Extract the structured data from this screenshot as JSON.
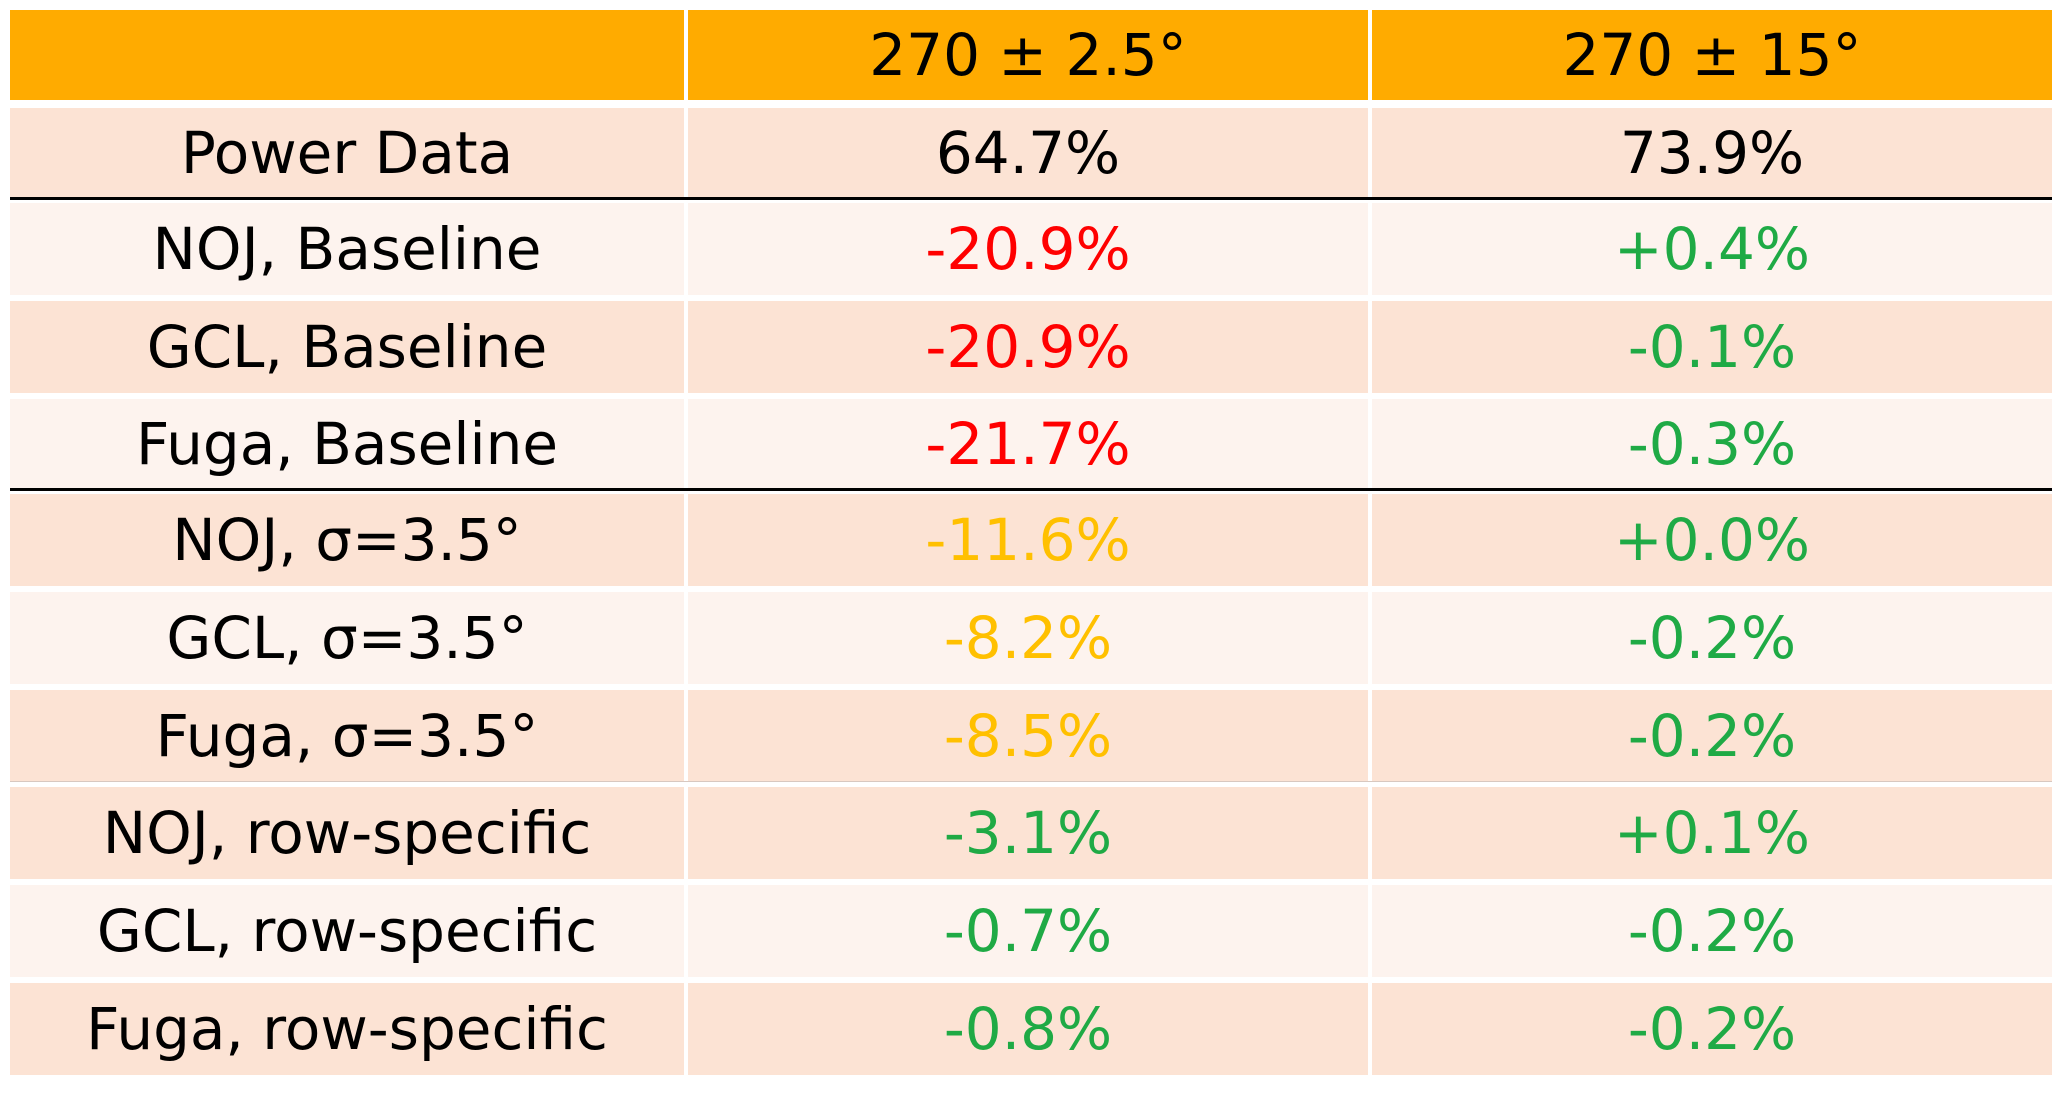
{
  "chart_data": {
    "type": "table",
    "columns": [
      "",
      "270 ± 2.5°",
      "270 ± 15°"
    ],
    "rows": [
      {
        "label": "Power Data",
        "values": [
          "64.7%",
          "73.9%"
        ],
        "colors": [
          "#000000",
          "#000000"
        ]
      },
      {
        "label": "NOJ, Baseline",
        "values": [
          "-20.9%",
          "+0.4%"
        ],
        "colors": [
          "#ff0000",
          "#1faa45"
        ]
      },
      {
        "label": "GCL, Baseline",
        "values": [
          "-20.9%",
          "-0.1%"
        ],
        "colors": [
          "#ff0000",
          "#1faa45"
        ]
      },
      {
        "label": "Fuga, Baseline",
        "values": [
          "-21.7%",
          "-0.3%"
        ],
        "colors": [
          "#ff0000",
          "#1faa45"
        ]
      },
      {
        "label": "NOJ, σ=3.5°",
        "values": [
          "-11.6%",
          "+0.0%"
        ],
        "colors": [
          "#ffc000",
          "#1faa45"
        ]
      },
      {
        "label": "GCL, σ=3.5°",
        "values": [
          "-8.2%",
          "-0.2%"
        ],
        "colors": [
          "#ffc000",
          "#1faa45"
        ]
      },
      {
        "label": "Fuga, σ=3.5°",
        "values": [
          "-8.5%",
          "-0.2%"
        ],
        "colors": [
          "#ffc000",
          "#1faa45"
        ]
      },
      {
        "label": "NOJ, row-specific",
        "values": [
          "-3.1%",
          "+0.1%"
        ],
        "colors": [
          "#1faa45",
          "#1faa45"
        ]
      },
      {
        "label": "GCL, row-specific",
        "values": [
          "-0.7%",
          "-0.2%"
        ],
        "colors": [
          "#1faa45",
          "#1faa45"
        ]
      },
      {
        "label": "Fuga, row-specific",
        "values": [
          "-0.8%",
          "-0.2%"
        ],
        "colors": [
          "#1faa45",
          "#1faa45"
        ]
      }
    ]
  },
  "colors": {
    "header_background": "#ffab00",
    "row_light": "#fdf3ee",
    "row_medium": "#fce3d4",
    "bad": "#ff0000",
    "medium": "#ffc000",
    "good": "#1faa45"
  }
}
